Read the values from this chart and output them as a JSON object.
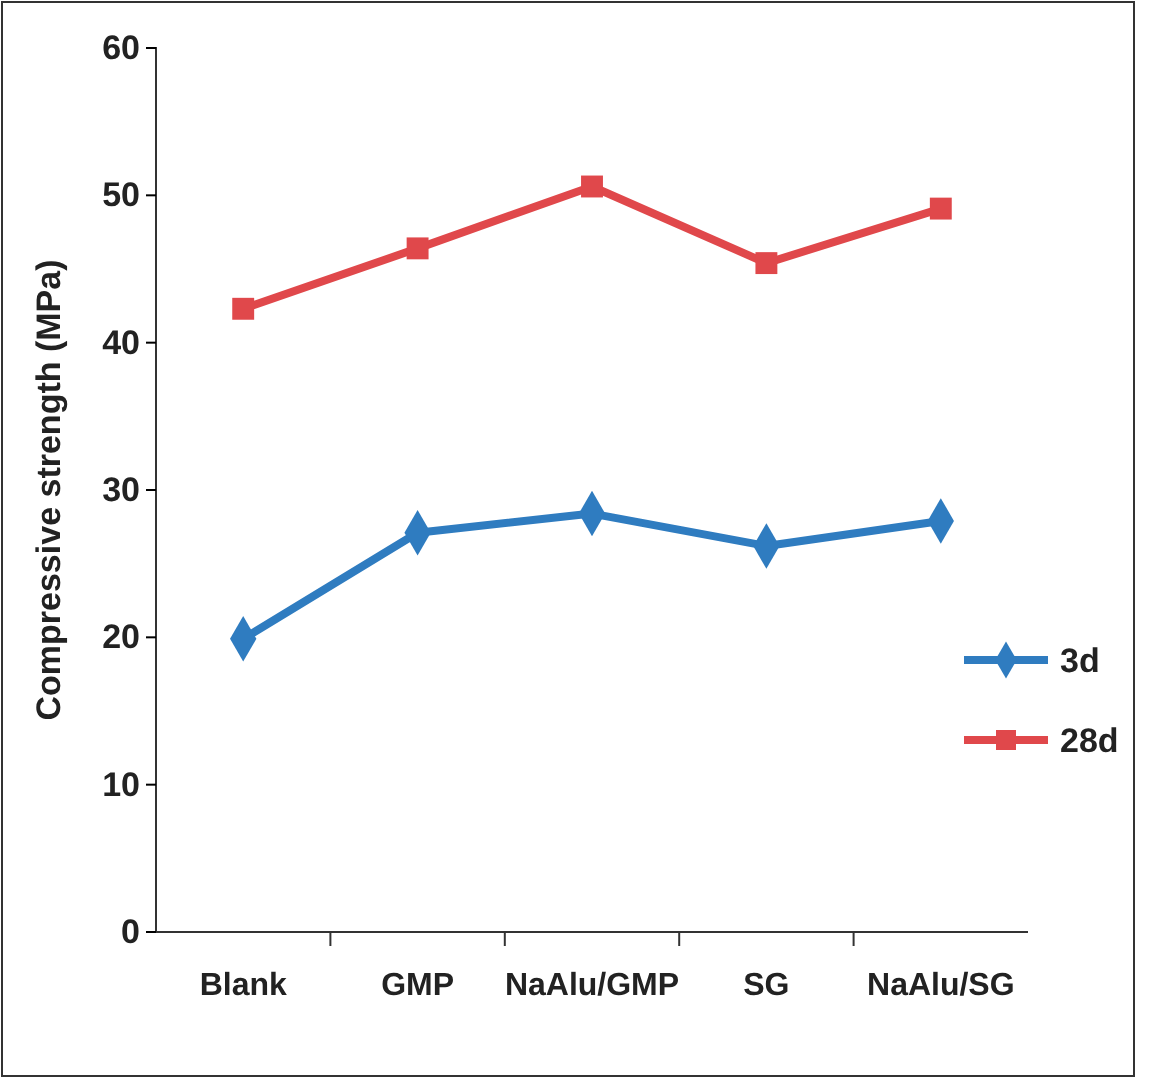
{
  "chart_data": {
    "type": "line",
    "ylabel": "Compressive strength (MPa)",
    "categories": [
      "Blank",
      "GMP",
      "NaAlu/GMP",
      "SG",
      "NaAlu/SG"
    ],
    "series": [
      {
        "name": "3d",
        "color": "#2f7cc0",
        "marker": "diamond",
        "values": [
          19.9,
          27.1,
          28.4,
          26.2,
          27.9
        ]
      },
      {
        "name": "28d",
        "color": "#e0484b",
        "marker": "square",
        "values": [
          42.3,
          46.4,
          50.6,
          45.4,
          49.1
        ]
      }
    ],
    "ylim": [
      0,
      60
    ],
    "yticks": [
      0,
      10,
      20,
      30,
      40,
      50,
      60
    ],
    "grid": false,
    "legend": "right",
    "line_style": "solid"
  }
}
